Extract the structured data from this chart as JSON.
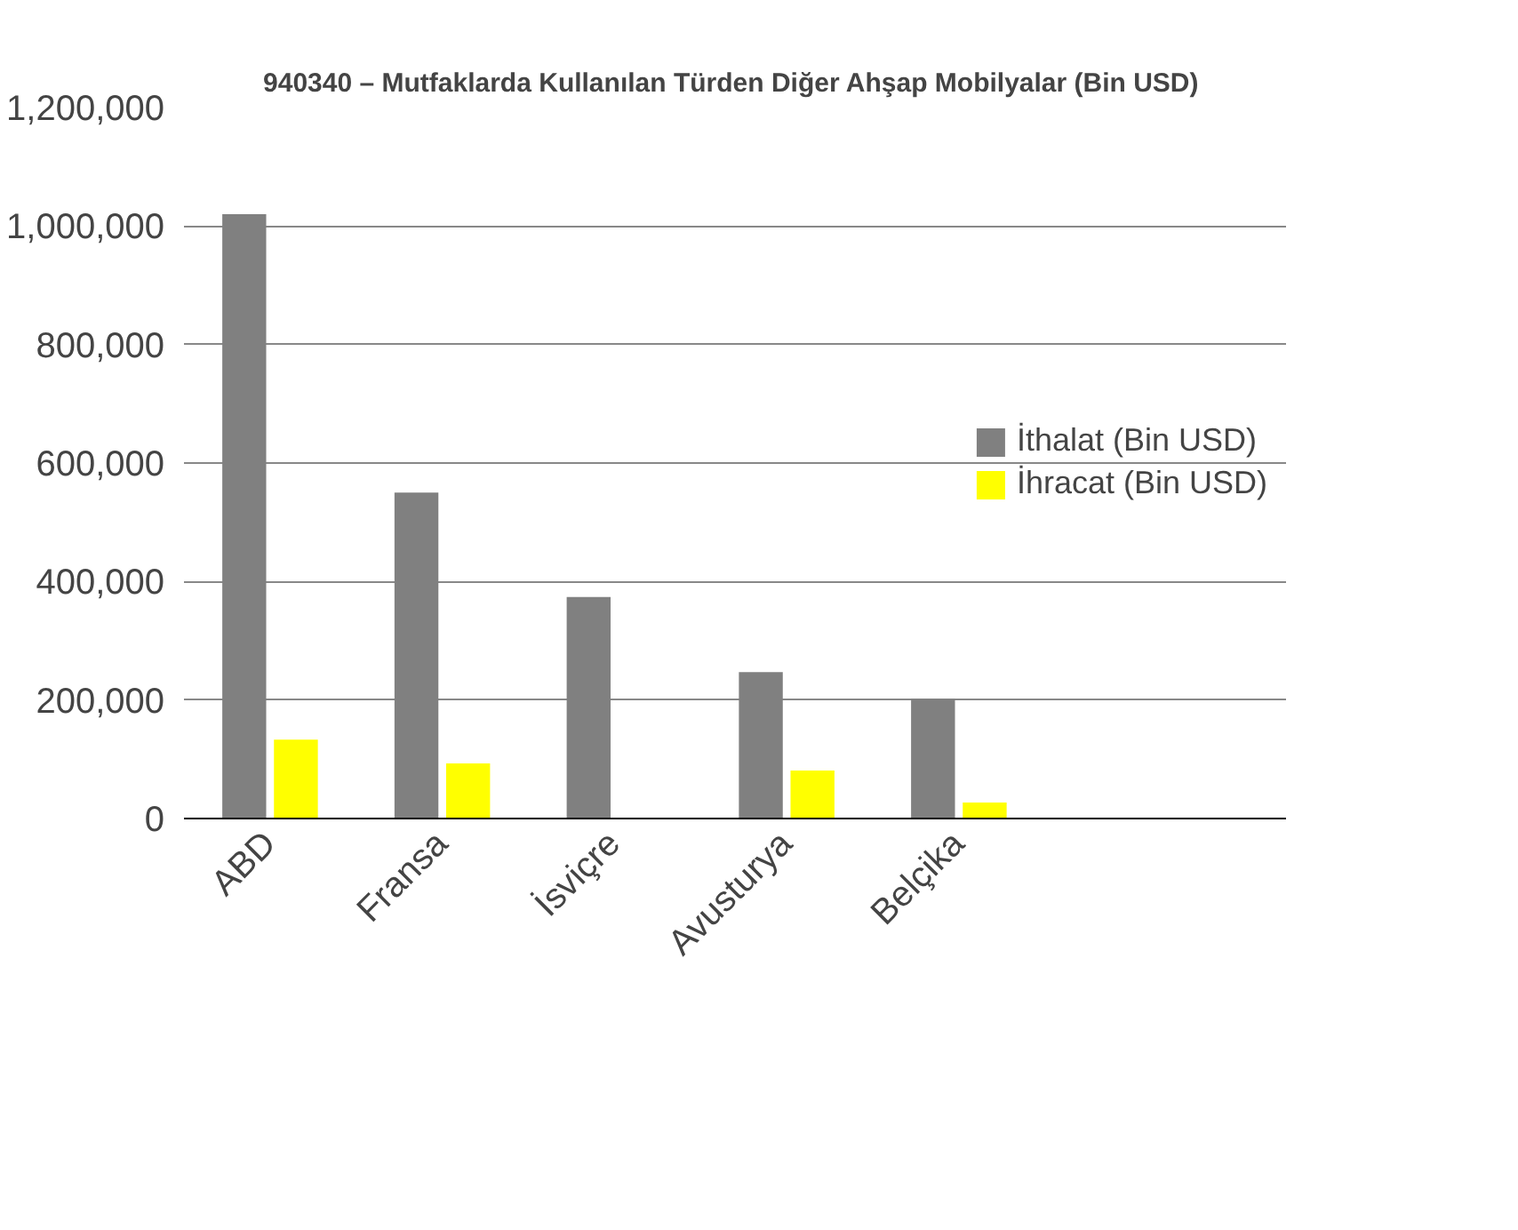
{
  "chart_data": {
    "type": "bar",
    "title": "940340 – Mutfaklarda Kullanılan Türden Diğer Ahşap Mobilyalar  (Bin USD)",
    "categories": [
      "ABD",
      "Fransa",
      "İsviçre",
      "Avusturya",
      "Belçika"
    ],
    "series": [
      {
        "name": "İthalat (Bin USD)",
        "color": "#808080",
        "values": [
          1020000,
          550000,
          374000,
          247000,
          202000
        ]
      },
      {
        "name": "İhracat (Bin USD)",
        "color": "#ffff00",
        "values": [
          133000,
          93000,
          null,
          81000,
          27000
        ]
      }
    ],
    "ylim": [
      0,
      1200000
    ],
    "yticks": [
      {
        "value": 0,
        "label": "0"
      },
      {
        "value": 200000,
        "label": "200,000"
      },
      {
        "value": 400000,
        "label": "400,000"
      },
      {
        "value": 600000,
        "label": "600,000"
      },
      {
        "value": 800000,
        "label": "800,000"
      },
      {
        "value": 1000000,
        "label": "1,000,000"
      },
      {
        "value": 1200000,
        "label": "1,200,000"
      }
    ],
    "grid": "y",
    "legend": "right"
  }
}
